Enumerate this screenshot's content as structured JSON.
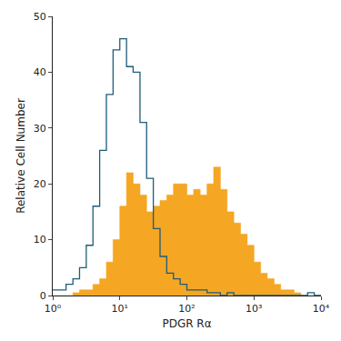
{
  "chart_data": {
    "type": "histogram",
    "x_label": "PDGR Rα",
    "y_label": "Relative Cell Number",
    "log": "x",
    "grid": false,
    "bins": [
      1,
      1.26,
      1.58,
      2,
      2.51,
      3.16,
      3.98,
      5.01,
      6.31,
      7.94,
      10,
      12.6,
      15.8,
      20,
      25.1,
      31.6,
      39.8,
      50.1,
      63.1,
      79.4,
      100,
      126,
      158,
      200,
      251,
      316,
      398,
      501,
      631,
      794,
      1000,
      1260,
      1580,
      2000,
      2510,
      3160,
      3980,
      5010,
      6310,
      7940,
      10000
    ],
    "series": [
      {
        "type": "area",
        "color": "#f5a623",
        "values": [
          0,
          0,
          0,
          0.5,
          1,
          1,
          2,
          3,
          6,
          10,
          16,
          22,
          20,
          18,
          15,
          16,
          17,
          18,
          20,
          20,
          18,
          19,
          18,
          20,
          23,
          19,
          15,
          13,
          11,
          9,
          6,
          4,
          3,
          2,
          1,
          1,
          0.5,
          0,
          0,
          0
        ]
      },
      {
        "type": "line",
        "color": "#1f5c7a",
        "values": [
          1,
          1,
          2,
          3,
          5,
          9,
          16,
          26,
          36,
          44,
          46,
          41,
          40,
          31,
          21,
          12,
          7,
          4,
          3,
          2,
          1,
          1,
          1,
          0.5,
          0.5,
          0,
          0.5,
          0,
          0,
          0,
          0,
          0,
          0,
          0,
          0,
          0,
          0,
          0,
          0.5,
          0
        ]
      }
    ],
    "xlim": [
      1,
      10000
    ],
    "xticks": [
      {
        "value": 1,
        "label": "10⁰"
      },
      {
        "value": 10,
        "label": "10¹"
      },
      {
        "value": 100,
        "label": "10²"
      },
      {
        "value": 1000,
        "label": "10³"
      },
      {
        "value": 10000,
        "label": "10⁴"
      }
    ],
    "ylim": [
      0,
      50
    ],
    "yticks": [
      0,
      10,
      20,
      30,
      40,
      50
    ]
  }
}
